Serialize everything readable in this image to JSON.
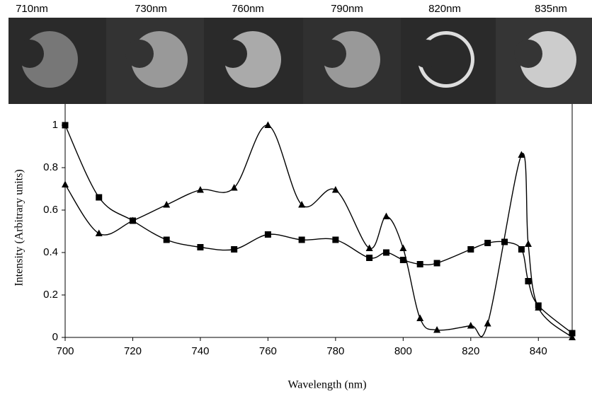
{
  "chart_data": {
    "type": "line",
    "panel_labels": [
      "710nm",
      "730nm",
      "760nm",
      "790nm",
      "820nm",
      "835nm"
    ],
    "xlabel": "Wavelength (nm)",
    "ylabel": "Intensity (Arbitrary units)",
    "xlim": [
      700,
      850
    ],
    "ylim": [
      0,
      1
    ],
    "xticks": [
      700,
      720,
      740,
      760,
      780,
      800,
      820,
      840
    ],
    "yticks": [
      0,
      0.2,
      0.4,
      0.6,
      0.8,
      1
    ],
    "series": [
      {
        "color": "#000000",
        "marker": "square",
        "x": [
          700,
          710,
          720,
          730,
          740,
          750,
          760,
          770,
          780,
          790,
          795,
          800,
          805,
          810,
          820,
          825,
          830,
          835,
          837,
          840,
          850
        ],
        "values": [
          1.0,
          0.66,
          0.55,
          0.46,
          0.425,
          0.415,
          0.485,
          0.46,
          0.46,
          0.375,
          0.4,
          0.365,
          0.345,
          0.35,
          0.415,
          0.445,
          0.45,
          0.415,
          0.265,
          0.15,
          0.02
        ]
      },
      {
        "color": "#000000",
        "marker": "triangle",
        "x": [
          700,
          710,
          720,
          730,
          740,
          750,
          760,
          770,
          780,
          790,
          795,
          800,
          805,
          810,
          820,
          825,
          835,
          837,
          840,
          850
        ],
        "values": [
          0.72,
          0.49,
          0.55,
          0.625,
          0.695,
          0.705,
          1.0,
          0.625,
          0.695,
          0.42,
          0.57,
          0.42,
          0.09,
          0.035,
          0.055,
          0.065,
          0.86,
          0.44,
          0.14,
          0.0
        ]
      }
    ]
  }
}
